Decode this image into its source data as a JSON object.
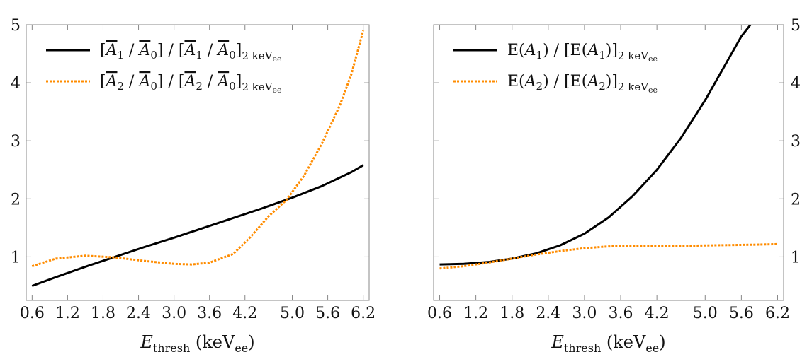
{
  "chart_data": [
    {
      "type": "line",
      "xlabel": "E_thresh (keV_ee)",
      "xlabel_parts": {
        "main": "E",
        "sub": "thresh",
        "unit_open": " (keV",
        "unit_sub": "ee",
        "unit_close": ")"
      },
      "xlim": [
        0.5,
        6.3
      ],
      "ylim": [
        0.25,
        5
      ],
      "x_ticks": [
        0.6,
        1.2,
        1.8,
        2.4,
        3.0,
        3.6,
        4.2,
        5.0,
        5.6,
        6.2
      ],
      "x_tick_labels": [
        "0.6",
        "1.2",
        "1.8",
        "2.4",
        "3.0",
        "3.6",
        "4.2",
        "5.0",
        "5.6",
        "6.2"
      ],
      "y_ticks": [
        1,
        2,
        3,
        4,
        5
      ],
      "y_tick_labels": [
        "1",
        "2",
        "3",
        "4",
        "5"
      ],
      "y_axis_side": "left",
      "legend_position": "top-left",
      "series": [
        {
          "legend_label": "[A̅1 / A̅0] / [A̅1 / A̅0]2 keVee",
          "legend_parts": {
            "a": "A",
            "i": "1",
            "b": "A",
            "j": "0",
            "sub": "2 keV",
            "subsub": "ee"
          },
          "style": "solid",
          "color": "#000000",
          "x": [
            0.6,
            1.0,
            1.5,
            2.0,
            2.5,
            3.0,
            3.5,
            4.0,
            4.5,
            5.0,
            5.5,
            6.0,
            6.2
          ],
          "y": [
            0.5,
            0.65,
            0.83,
            1.0,
            1.17,
            1.33,
            1.5,
            1.67,
            1.84,
            2.02,
            2.22,
            2.46,
            2.58
          ]
        },
        {
          "legend_label": "[A̅2 / A̅0] / [A̅2 / A̅0]2 keVee",
          "legend_parts": {
            "a": "A",
            "i": "2",
            "b": "A",
            "j": "0",
            "sub": "2 keV",
            "subsub": "ee"
          },
          "style": "dotted",
          "color": "#ff8c00",
          "x": [
            0.6,
            1.0,
            1.5,
            2.0,
            2.5,
            3.0,
            3.3,
            3.6,
            4.0,
            4.3,
            4.6,
            4.9,
            5.2,
            5.5,
            5.8,
            6.0,
            6.2
          ],
          "y": [
            0.84,
            0.97,
            1.02,
            0.99,
            0.93,
            0.88,
            0.87,
            0.9,
            1.05,
            1.35,
            1.7,
            1.98,
            2.4,
            2.95,
            3.6,
            4.15,
            4.9
          ]
        }
      ]
    },
    {
      "type": "line",
      "xlabel": "E_thresh (keV_ee)",
      "xlabel_parts": {
        "main": "E",
        "sub": "thresh",
        "unit_open": " (keV",
        "unit_sub": "ee",
        "unit_close": ")"
      },
      "xlim": [
        0.5,
        6.3
      ],
      "ylim": [
        0.25,
        5
      ],
      "x_ticks": [
        0.6,
        1.2,
        1.8,
        2.4,
        3.0,
        3.6,
        4.2,
        5.0,
        5.6,
        6.2
      ],
      "x_tick_labels": [
        "0.6",
        "1.2",
        "1.8",
        "2.4",
        "3.0",
        "3.6",
        "4.2",
        "5.0",
        "5.6",
        "6.2"
      ],
      "y_ticks": [
        1,
        2,
        3,
        4,
        5
      ],
      "y_tick_labels": [
        "1",
        "2",
        "3",
        "4",
        "5"
      ],
      "y_axis_side": "right",
      "legend_position": "top-left",
      "series": [
        {
          "legend_label": "E(A1) / [E(A1)]2 keVee",
          "legend_parts": {
            "i": "1",
            "sub": "2 keV",
            "subsub": "ee"
          },
          "style": "solid",
          "color": "#000000",
          "x": [
            0.6,
            1.0,
            1.4,
            1.8,
            2.2,
            2.6,
            3.0,
            3.4,
            3.8,
            4.2,
            4.6,
            5.0,
            5.3,
            5.6,
            5.75
          ],
          "y": [
            0.87,
            0.88,
            0.91,
            0.97,
            1.06,
            1.2,
            1.4,
            1.68,
            2.05,
            2.5,
            3.05,
            3.7,
            4.25,
            4.8,
            5.0
          ]
        },
        {
          "legend_label": "E(A2) / [E(A2)]2 keVee",
          "legend_parts": {
            "i": "2",
            "sub": "2 keV",
            "subsub": "ee"
          },
          "style": "dotted",
          "color": "#ff8c00",
          "x": [
            0.6,
            1.0,
            1.4,
            1.8,
            2.2,
            2.6,
            3.0,
            3.4,
            4.0,
            4.6,
            5.2,
            5.8,
            6.2
          ],
          "y": [
            0.8,
            0.84,
            0.9,
            0.97,
            1.04,
            1.1,
            1.15,
            1.18,
            1.19,
            1.19,
            1.2,
            1.21,
            1.22
          ]
        }
      ]
    }
  ]
}
